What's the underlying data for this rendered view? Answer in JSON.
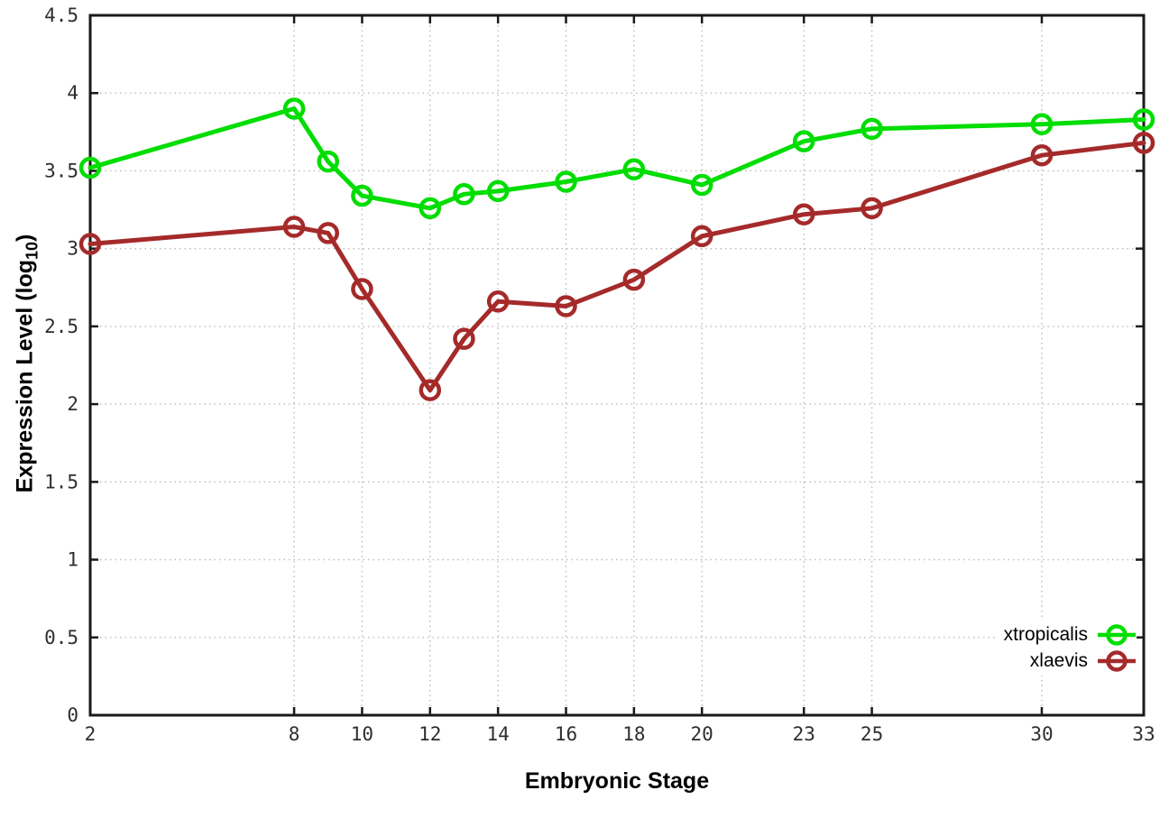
{
  "chart_data": {
    "type": "line",
    "title": "",
    "xlabel": "Embryonic Stage",
    "ylabel": {
      "prefix": "Expression Level (log",
      "sub": "10",
      "suffix": ")"
    },
    "x": [
      2,
      8,
      9,
      10,
      12,
      13,
      14,
      16,
      18,
      20,
      23,
      25,
      30,
      33
    ],
    "series": [
      {
        "name": "xtropicalis",
        "color": "#00dd00",
        "values": [
          3.52,
          3.9,
          3.56,
          3.34,
          3.26,
          3.35,
          3.37,
          3.43,
          3.51,
          3.41,
          3.69,
          3.77,
          3.8,
          3.83
        ]
      },
      {
        "name": "xlaevis",
        "color": "#a52a2a",
        "values": [
          3.03,
          3.14,
          3.1,
          2.74,
          2.09,
          2.42,
          2.66,
          2.63,
          2.8,
          3.08,
          3.22,
          3.26,
          3.6,
          3.68
        ]
      }
    ],
    "xlim": [
      2,
      33
    ],
    "ylim": [
      0,
      4.5
    ],
    "x_ticks": [
      2,
      8,
      10,
      12,
      14,
      16,
      18,
      20,
      23,
      25,
      30,
      33
    ],
    "x_tick_labels": [
      "2",
      "8",
      "10",
      "12",
      "14",
      "16",
      "18",
      "20",
      "23",
      "25",
      "30",
      "33"
    ],
    "y_ticks": [
      0,
      0.5,
      1,
      1.5,
      2,
      2.5,
      3,
      3.5,
      4,
      4.5
    ],
    "y_tick_labels": [
      "0",
      "0.5",
      "1",
      "1.5",
      "2",
      "2.5",
      "3",
      "3.5",
      "4",
      "4.5"
    ],
    "grid": true,
    "legend_position": "bottom-right",
    "marker": "open-circle"
  },
  "styles": {
    "axis_color": "#1a1a1a",
    "grid_color": "#bbbbbb",
    "tick_label_color": "#2e2e2e",
    "background": "#ffffff"
  }
}
